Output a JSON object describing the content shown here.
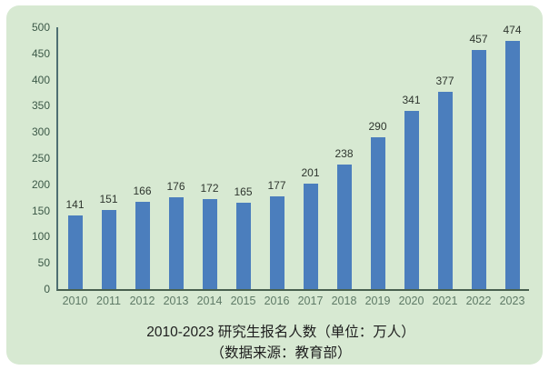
{
  "chart_data": {
    "type": "bar",
    "categories": [
      "2010",
      "2011",
      "2012",
      "2013",
      "2014",
      "2015",
      "2016",
      "2017",
      "2018",
      "2019",
      "2020",
      "2021",
      "2022",
      "2023"
    ],
    "values": [
      141,
      151,
      166,
      176,
      172,
      165,
      177,
      201,
      238,
      290,
      341,
      377,
      457,
      474
    ],
    "title": "2010-2023 研究生报名人数（单位：万人）",
    "subtitle": "（数据来源：教育部）",
    "xlabel": "",
    "ylabel": "",
    "ylim": [
      0,
      500
    ],
    "ytick_step": 50,
    "grid": false,
    "legend_position": "none",
    "bar_color": "#4b7ebd",
    "panel_background": "#d7e9d2"
  }
}
